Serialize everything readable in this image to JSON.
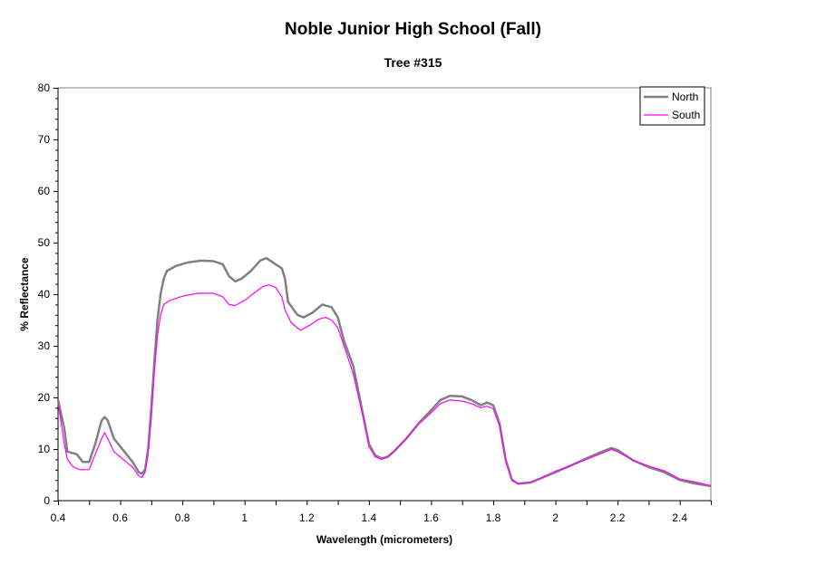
{
  "chart_data": {
    "type": "line",
    "title": "Noble Junior High School (Fall)",
    "subtitle": "Tree #315",
    "xlabel": "Wavelength (micrometers)",
    "ylabel": "% Reflectance",
    "xlim": [
      0.4,
      2.5
    ],
    "ylim": [
      0,
      80
    ],
    "x_ticks": [
      "0.4",
      "0.6",
      "0.8",
      "1",
      "1.2",
      "1.4",
      "1.6",
      "1.8",
      "2",
      "2.2",
      "2.4"
    ],
    "y_ticks": [
      "0",
      "10",
      "20",
      "30",
      "40",
      "50",
      "60",
      "70",
      "80"
    ],
    "grid": false,
    "legend_position": "top-right",
    "series": [
      {
        "name": "North",
        "color": "#808080",
        "points": [
          [
            0.4,
            19.5
          ],
          [
            0.42,
            14
          ],
          [
            0.43,
            9.5
          ],
          [
            0.46,
            9
          ],
          [
            0.48,
            7.5
          ],
          [
            0.5,
            7.5
          ],
          [
            0.52,
            11
          ],
          [
            0.54,
            15.5
          ],
          [
            0.55,
            16.2
          ],
          [
            0.56,
            15.5
          ],
          [
            0.58,
            12
          ],
          [
            0.6,
            10.5
          ],
          [
            0.62,
            9
          ],
          [
            0.64,
            7.5
          ],
          [
            0.66,
            5.5
          ],
          [
            0.67,
            5.2
          ],
          [
            0.68,
            6
          ],
          [
            0.69,
            10
          ],
          [
            0.7,
            18
          ],
          [
            0.71,
            27
          ],
          [
            0.72,
            35
          ],
          [
            0.73,
            40
          ],
          [
            0.74,
            43
          ],
          [
            0.75,
            44.5
          ],
          [
            0.78,
            45.5
          ],
          [
            0.82,
            46.2
          ],
          [
            0.86,
            46.5
          ],
          [
            0.9,
            46.4
          ],
          [
            0.93,
            45.8
          ],
          [
            0.95,
            43.5
          ],
          [
            0.97,
            42.5
          ],
          [
            0.99,
            43
          ],
          [
            1.02,
            44.5
          ],
          [
            1.05,
            46.5
          ],
          [
            1.07,
            47
          ],
          [
            1.09,
            46.2
          ],
          [
            1.12,
            45
          ],
          [
            1.13,
            43
          ],
          [
            1.14,
            38.5
          ],
          [
            1.17,
            36
          ],
          [
            1.19,
            35.5
          ],
          [
            1.22,
            36.5
          ],
          [
            1.25,
            38
          ],
          [
            1.28,
            37.5
          ],
          [
            1.3,
            35.5
          ],
          [
            1.32,
            31
          ],
          [
            1.35,
            26
          ],
          [
            1.38,
            17
          ],
          [
            1.4,
            11
          ],
          [
            1.42,
            8.8
          ],
          [
            1.44,
            8.2
          ],
          [
            1.46,
            8.5
          ],
          [
            1.48,
            9.5
          ],
          [
            1.52,
            12
          ],
          [
            1.56,
            15
          ],
          [
            1.6,
            17.5
          ],
          [
            1.63,
            19.5
          ],
          [
            1.66,
            20.3
          ],
          [
            1.7,
            20.2
          ],
          [
            1.73,
            19.5
          ],
          [
            1.76,
            18.5
          ],
          [
            1.78,
            19
          ],
          [
            1.8,
            18.5
          ],
          [
            1.82,
            15
          ],
          [
            1.84,
            8
          ],
          [
            1.86,
            4
          ],
          [
            1.88,
            3.3
          ],
          [
            1.92,
            3.5
          ],
          [
            1.96,
            4.5
          ],
          [
            2.0,
            5.5
          ],
          [
            2.05,
            6.8
          ],
          [
            2.1,
            8.2
          ],
          [
            2.15,
            9.5
          ],
          [
            2.18,
            10.2
          ],
          [
            2.2,
            9.8
          ],
          [
            2.25,
            7.8
          ],
          [
            2.3,
            6.5
          ],
          [
            2.35,
            5.5
          ],
          [
            2.4,
            4
          ],
          [
            2.45,
            3.3
          ],
          [
            2.5,
            2.8
          ]
        ]
      },
      {
        "name": "South",
        "color": "#ff00ff",
        "points": [
          [
            0.4,
            19
          ],
          [
            0.42,
            11
          ],
          [
            0.43,
            8
          ],
          [
            0.45,
            6.5
          ],
          [
            0.47,
            6
          ],
          [
            0.5,
            6
          ],
          [
            0.52,
            9
          ],
          [
            0.54,
            12
          ],
          [
            0.55,
            13.2
          ],
          [
            0.56,
            12
          ],
          [
            0.58,
            9.5
          ],
          [
            0.6,
            8.5
          ],
          [
            0.62,
            7.5
          ],
          [
            0.64,
            6.5
          ],
          [
            0.66,
            4.8
          ],
          [
            0.67,
            4.5
          ],
          [
            0.68,
            5.5
          ],
          [
            0.69,
            9
          ],
          [
            0.7,
            16
          ],
          [
            0.71,
            25
          ],
          [
            0.72,
            32
          ],
          [
            0.73,
            36
          ],
          [
            0.74,
            38
          ],
          [
            0.76,
            38.8
          ],
          [
            0.8,
            39.6
          ],
          [
            0.85,
            40.2
          ],
          [
            0.9,
            40.2
          ],
          [
            0.93,
            39.5
          ],
          [
            0.95,
            38
          ],
          [
            0.97,
            37.8
          ],
          [
            1.0,
            38.8
          ],
          [
            1.03,
            40.2
          ],
          [
            1.06,
            41.5
          ],
          [
            1.08,
            41.8
          ],
          [
            1.1,
            41.3
          ],
          [
            1.12,
            39.5
          ],
          [
            1.13,
            37
          ],
          [
            1.15,
            34.5
          ],
          [
            1.18,
            33
          ],
          [
            1.21,
            34
          ],
          [
            1.24,
            35.2
          ],
          [
            1.26,
            35.5
          ],
          [
            1.28,
            35
          ],
          [
            1.3,
            33.5
          ],
          [
            1.32,
            30
          ],
          [
            1.35,
            24.5
          ],
          [
            1.38,
            16.5
          ],
          [
            1.4,
            10.5
          ],
          [
            1.42,
            8.5
          ],
          [
            1.44,
            8
          ],
          [
            1.46,
            8.4
          ],
          [
            1.48,
            9.5
          ],
          [
            1.52,
            12
          ],
          [
            1.56,
            14.8
          ],
          [
            1.6,
            17
          ],
          [
            1.63,
            18.8
          ],
          [
            1.66,
            19.5
          ],
          [
            1.7,
            19.3
          ],
          [
            1.73,
            18.8
          ],
          [
            1.76,
            18
          ],
          [
            1.78,
            18.3
          ],
          [
            1.8,
            17.8
          ],
          [
            1.82,
            14.5
          ],
          [
            1.84,
            7.5
          ],
          [
            1.86,
            4
          ],
          [
            1.88,
            3.2
          ],
          [
            1.92,
            3.6
          ],
          [
            1.96,
            4.6
          ],
          [
            2.0,
            5.7
          ],
          [
            2.05,
            6.8
          ],
          [
            2.1,
            8
          ],
          [
            2.15,
            9.2
          ],
          [
            2.18,
            9.9
          ],
          [
            2.2,
            9.5
          ],
          [
            2.25,
            7.8
          ],
          [
            2.3,
            6.7
          ],
          [
            2.35,
            5.8
          ],
          [
            2.4,
            4.2
          ],
          [
            2.45,
            3.6
          ],
          [
            2.5,
            2.9
          ]
        ]
      }
    ]
  }
}
